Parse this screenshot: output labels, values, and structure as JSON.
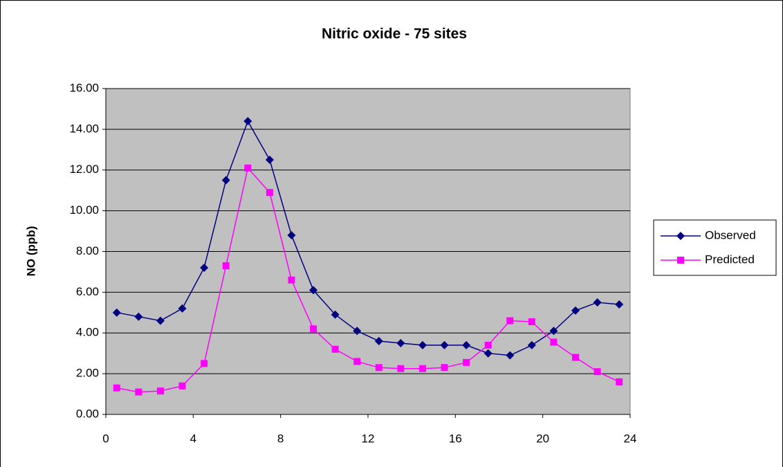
{
  "chart_data": {
    "type": "line",
    "title": "Nitric oxide - 75 sites",
    "y_label": "NO (ppb)",
    "x": [
      0.5,
      1.5,
      2.5,
      3.5,
      4.5,
      5.5,
      6.5,
      7.5,
      8.5,
      9.5,
      10.5,
      11.5,
      12.5,
      13.5,
      14.5,
      15.5,
      16.5,
      17.5,
      18.5,
      19.5,
      20.5,
      21.5,
      22.5,
      23.5
    ],
    "series": [
      {
        "name": "Observed",
        "color": "#000080",
        "marker": "diamond",
        "values": [
          5.0,
          4.8,
          4.6,
          5.2,
          7.2,
          11.5,
          14.4,
          12.5,
          8.8,
          6.1,
          4.9,
          4.1,
          3.6,
          3.5,
          3.4,
          3.4,
          3.4,
          3.0,
          2.9,
          3.4,
          4.1,
          5.1,
          5.5,
          5.4
        ]
      },
      {
        "name": "Predicted",
        "color": "#ff00ff",
        "marker": "square",
        "values": [
          1.3,
          1.1,
          1.15,
          1.4,
          2.5,
          7.3,
          12.1,
          10.9,
          6.6,
          4.2,
          3.2,
          2.6,
          2.3,
          2.25,
          2.25,
          2.3,
          2.55,
          3.4,
          4.6,
          4.55,
          3.55,
          2.8,
          2.1,
          1.6
        ]
      }
    ],
    "xlim": [
      0,
      24
    ],
    "xticks": [
      0,
      4,
      8,
      12,
      16,
      20,
      24
    ],
    "ylim": [
      0,
      16
    ],
    "yticks": [
      {
        "value": 0,
        "label": "0.00"
      },
      {
        "value": 2,
        "label": "2.00"
      },
      {
        "value": 4,
        "label": "4.00"
      },
      {
        "value": 6,
        "label": "6.00"
      },
      {
        "value": 8,
        "label": "8.00"
      },
      {
        "value": 10,
        "label": "10.00"
      },
      {
        "value": 12,
        "label": "12.00"
      },
      {
        "value": 14,
        "label": "14.00"
      },
      {
        "value": 16,
        "label": "16.00"
      }
    ],
    "grid": true,
    "plot_background": "#c0c0c0",
    "legend": "right"
  }
}
